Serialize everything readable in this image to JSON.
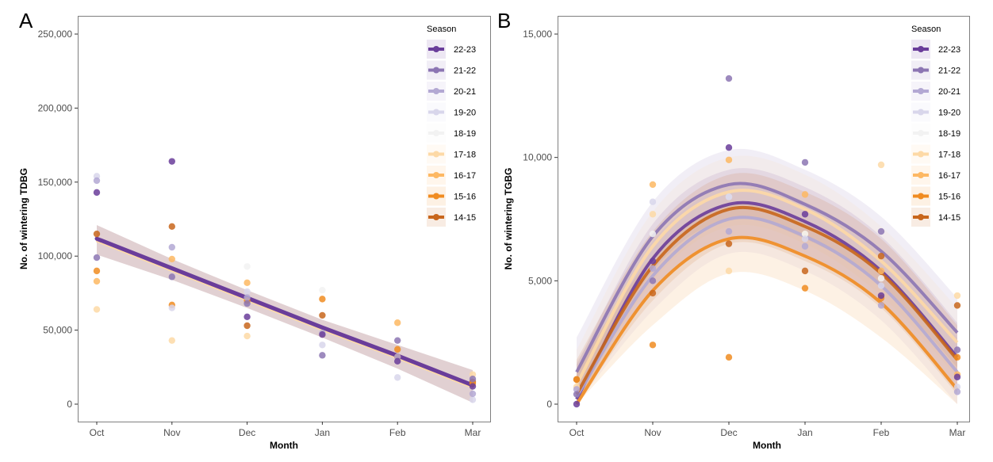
{
  "seasons": [
    {
      "name": "22-23",
      "color": "#6a3d9a"
    },
    {
      "name": "21-22",
      "color": "#8c75b3"
    },
    {
      "name": "20-21",
      "color": "#b3a8d3"
    },
    {
      "name": "19-20",
      "color": "#d8d6eb"
    },
    {
      "name": "18-19",
      "color": "#f2f2f2"
    },
    {
      "name": "17-18",
      "color": "#fdd9a6"
    },
    {
      "name": "16-17",
      "color": "#fdb863"
    },
    {
      "name": "15-16",
      "color": "#f08c21"
    },
    {
      "name": "14-15",
      "color": "#c8661c"
    }
  ],
  "chart_data": [
    {
      "type": "scatter",
      "panel_label": "A",
      "title": "",
      "xlabel": "Month",
      "ylabel": "No. of wintering TDBG",
      "categories": [
        "Oct",
        "Nov",
        "Dec",
        "Jan",
        "Feb",
        "Mar"
      ],
      "ylim": [
        -10000,
        260000
      ],
      "yticks": [
        0,
        50000,
        100000,
        150000,
        200000,
        250000
      ],
      "ytick_labels": [
        "0",
        "50,000",
        "100,000",
        "150,000",
        "200,000",
        "250,000"
      ],
      "grid": false,
      "legend": {
        "title": "Season",
        "position": "top-right"
      },
      "fit": "linear",
      "series": [
        {
          "name": "22-23",
          "values": [
            143000,
            164000,
            59000,
            47000,
            29000,
            12000
          ]
        },
        {
          "name": "21-22",
          "values": [
            99000,
            86000,
            68000,
            33000,
            43000,
            17000
          ]
        },
        {
          "name": "20-21",
          "values": [
            151000,
            106000,
            72000,
            48000,
            32000,
            7000
          ]
        },
        {
          "name": "19-20",
          "values": [
            154000,
            65000,
            76000,
            40000,
            18000,
            3000
          ]
        },
        {
          "name": "18-19",
          "values": [
            null,
            null,
            93000,
            77000,
            null,
            null
          ]
        },
        {
          "name": "17-18",
          "values": [
            64000,
            43000,
            46000,
            47000,
            null,
            20000
          ]
        },
        {
          "name": "16-17",
          "values": [
            83000,
            98000,
            82000,
            null,
            55000,
            null
          ]
        },
        {
          "name": "15-16",
          "values": [
            90000,
            67000,
            70000,
            71000,
            37000,
            14000
          ]
        },
        {
          "name": "14-15",
          "values": [
            115000,
            120000,
            53000,
            60000,
            32000,
            15000
          ]
        }
      ],
      "trend": {
        "name": "pooled linear fit",
        "values": [
          111000,
          91000,
          71000,
          51000,
          32000,
          12000
        ],
        "ci_low": [
          101000,
          84000,
          65000,
          45000,
          24000,
          1000
        ],
        "ci_high": [
          121000,
          98000,
          77000,
          57000,
          40000,
          23000
        ]
      }
    },
    {
      "type": "scatter",
      "panel_label": "B",
      "title": "",
      "xlabel": "Month",
      "ylabel": "No. of wintering TGBG",
      "categories": [
        "Oct",
        "Nov",
        "Dec",
        "Jan",
        "Feb",
        "Mar"
      ],
      "ylim": [
        -600,
        15600
      ],
      "yticks": [
        0,
        5000,
        10000,
        15000
      ],
      "ytick_labels": [
        "0",
        "5,000",
        "10,000",
        "15,000"
      ],
      "grid": false,
      "legend": {
        "title": "Season",
        "position": "top-right"
      },
      "fit": "quadratic",
      "series": [
        {
          "name": "22-23",
          "values": [
            0,
            5800,
            10400,
            7700,
            4400,
            1100
          ],
          "fit": [
            200,
            5900,
            8100,
            7400,
            5400,
            1900
          ]
        },
        {
          "name": "21-22",
          "values": [
            400,
            5000,
            13200,
            9800,
            7000,
            2200
          ],
          "fit": [
            1300,
            6800,
            8900,
            8100,
            6200,
            2900
          ]
        },
        {
          "name": "20-21",
          "values": [
            600,
            5500,
            7000,
            6400,
            4000,
            500
          ],
          "fit": [
            300,
            5200,
            7500,
            6800,
            4800,
            1300
          ]
        },
        {
          "name": "19-20",
          "values": [
            null,
            8200,
            8400,
            6700,
            4800,
            700
          ],
          "fit": null
        },
        {
          "name": "18-19",
          "values": [
            null,
            6900,
            8400,
            6900,
            5100,
            null
          ],
          "fit": null
        },
        {
          "name": "17-18",
          "values": [
            700,
            7700,
            5400,
            6900,
            9700,
            4400
          ],
          "fit": [
            800,
            6400,
            8600,
            7900,
            5800,
            2500
          ]
        },
        {
          "name": "16-17",
          "values": [
            null,
            8900,
            9900,
            8500,
            5400,
            1200
          ],
          "fit": null
        },
        {
          "name": "15-16",
          "values": [
            1000,
            2400,
            1900,
            4700,
            4300,
            1900
          ],
          "fit": [
            0,
            4600,
            6700,
            6000,
            4100,
            600
          ]
        },
        {
          "name": "14-15",
          "values": [
            1000,
            4500,
            6500,
            5400,
            6000,
            4000
          ],
          "fit": [
            400,
            5600,
            7900,
            7200,
            5300,
            1800
          ]
        }
      ]
    }
  ]
}
